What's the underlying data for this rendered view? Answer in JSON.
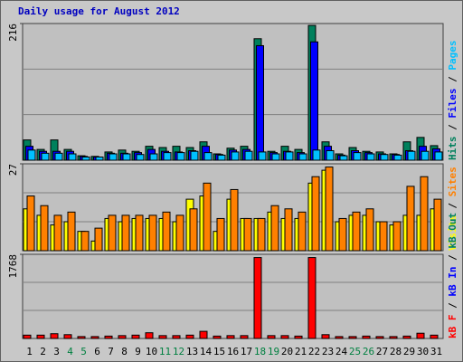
{
  "chart_data": [
    {
      "type": "bar",
      "title": "Daily usage for August 2012",
      "legend_separator": " / ",
      "categories": [
        "1",
        "2",
        "3",
        "4",
        "5",
        "6",
        "7",
        "8",
        "9",
        "10",
        "11",
        "12",
        "13",
        "14",
        "15",
        "16",
        "17",
        "18",
        "19",
        "20",
        "21",
        "22",
        "23",
        "24",
        "25",
        "26",
        "27",
        "28",
        "29",
        "30",
        "31"
      ],
      "category_colors": [
        "#000000",
        "#000000",
        "#000000",
        "#008040",
        "#008040",
        "#000000",
        "#000000",
        "#000000",
        "#000000",
        "#000000",
        "#008040",
        "#008040",
        "#000000",
        "#000000",
        "#000000",
        "#000000",
        "#000000",
        "#008040",
        "#008040",
        "#000000",
        "#000000",
        "#000000",
        "#000000",
        "#000000",
        "#008040",
        "#008040",
        "#000000",
        "#000000",
        "#000000",
        "#000000",
        "#000000"
      ],
      "ylim": [
        0,
        216
      ],
      "yticks": [
        216
      ],
      "series": [
        {
          "name": "Hits",
          "color": "#00805c",
          "values": [
            32,
            17,
            32,
            17,
            7,
            6,
            13,
            16,
            14,
            22,
            20,
            22,
            20,
            29,
            10,
            19,
            22,
            192,
            14,
            22,
            17,
            213,
            29,
            10,
            20,
            14,
            13,
            10,
            29,
            36,
            23
          ]
        },
        {
          "name": "Files",
          "color": "#0000ff",
          "values": [
            22,
            14,
            14,
            14,
            6,
            5,
            11,
            11,
            12,
            17,
            14,
            13,
            15,
            22,
            9,
            16,
            17,
            181,
            12,
            14,
            12,
            187,
            22,
            8,
            15,
            12,
            10,
            9,
            15,
            22,
            18
          ]
        },
        {
          "name": "Pages",
          "color": "#00c0ff",
          "values": [
            16,
            11,
            11,
            10,
            5,
            5,
            10,
            10,
            9,
            10,
            12,
            12,
            14,
            12,
            8,
            13,
            14,
            13,
            10,
            13,
            10,
            16,
            15,
            7,
            12,
            10,
            9,
            8,
            14,
            14,
            13
          ]
        }
      ]
    },
    {
      "type": "bar",
      "ylim": [
        0,
        27
      ],
      "yticks": [
        27
      ],
      "series": [
        {
          "name": "Visits",
          "color": "#ffff00",
          "values": [
            13,
            11,
            8,
            9,
            6,
            3,
            10,
            9,
            10,
            10,
            10,
            9,
            16,
            17,
            6,
            16,
            10,
            10,
            12,
            10,
            10,
            21,
            25,
            9,
            11,
            11,
            9,
            8,
            11,
            11,
            13
          ]
        },
        {
          "name": "Sites",
          "color": "#ff8000",
          "values": [
            17,
            14,
            11,
            12,
            6,
            7,
            11,
            11,
            11,
            11,
            12,
            11,
            13,
            21,
            10,
            19,
            10,
            10,
            14,
            13,
            12,
            23,
            26,
            10,
            12,
            13,
            9,
            9,
            20,
            23,
            16
          ]
        }
      ]
    },
    {
      "type": "bar",
      "ylim": [
        0,
        1768
      ],
      "yticks": [
        1768
      ],
      "series": [
        {
          "name": "kB F",
          "color": "#ff0000",
          "values": [
            70,
            70,
            100,
            80,
            40,
            40,
            50,
            60,
            70,
            120,
            60,
            60,
            70,
            150,
            50,
            60,
            60,
            1700,
            60,
            60,
            50,
            1700,
            80,
            40,
            40,
            50,
            40,
            40,
            50,
            110,
            70
          ]
        },
        {
          "name": "kB In",
          "color": "#0000ff",
          "values": [
            0,
            0,
            0,
            0,
            0,
            0,
            0,
            0,
            0,
            0,
            0,
            0,
            0,
            0,
            0,
            0,
            0,
            0,
            0,
            0,
            0,
            0,
            0,
            0,
            0,
            0,
            0,
            0,
            0,
            0,
            0
          ]
        },
        {
          "name": "kB Out",
          "color": "#00805c",
          "values": [
            0,
            0,
            0,
            0,
            0,
            0,
            0,
            0,
            0,
            0,
            0,
            0,
            0,
            0,
            0,
            0,
            0,
            0,
            0,
            0,
            0,
            0,
            0,
            0,
            0,
            0,
            0,
            0,
            0,
            0,
            0
          ]
        }
      ]
    }
  ]
}
